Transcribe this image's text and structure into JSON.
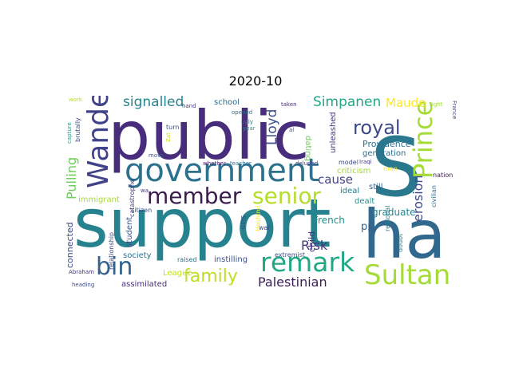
{
  "title": "2020-10",
  "words": [
    {
      "text": "public",
      "color": "#472d7b"
    },
    {
      "text": "support",
      "color": "#26828e"
    },
    {
      "text": "S",
      "color": "#2a788e"
    },
    {
      "text": "ha",
      "color": "#31688e"
    },
    {
      "text": "government",
      "color": "#2c728e"
    },
    {
      "text": "Prince",
      "color": "#a5db36"
    },
    {
      "text": "Wander",
      "color": "#404387"
    },
    {
      "text": "member",
      "color": "#3b1c4e"
    },
    {
      "text": "senior",
      "color": "#b5de2b"
    },
    {
      "text": "remark",
      "color": "#22a884"
    },
    {
      "text": "Sultan",
      "color": "#a5db36"
    },
    {
      "text": "bin",
      "color": "#33638d"
    },
    {
      "text": "royal",
      "color": "#3e4989"
    },
    {
      "text": "family",
      "color": "#bddf26"
    },
    {
      "text": "Palestinian",
      "color": "#3e1c5a"
    },
    {
      "text": "signalled",
      "color": "#25848e"
    },
    {
      "text": "Simpanen",
      "color": "#22a884"
    },
    {
      "text": "Lloyd",
      "color": "#3b528b"
    },
    {
      "text": "Maude",
      "color": "#fde725"
    },
    {
      "text": "erosion",
      "color": "#3e4989"
    },
    {
      "text": "Pulling",
      "color": "#6ece58"
    },
    {
      "text": "cause",
      "color": "#404387"
    },
    {
      "text": "Risk",
      "color": "#46337e"
    },
    {
      "text": "Providence",
      "color": "#2c728e"
    },
    {
      "text": "graduate",
      "color": "#24868e"
    },
    {
      "text": "pp",
      "color": "#33638d"
    },
    {
      "text": "French",
      "color": "#21918c"
    },
    {
      "text": "child",
      "color": "#46337e"
    },
    {
      "text": "connected",
      "color": "#3e4989"
    },
    {
      "text": "student",
      "color": "#39568c"
    },
    {
      "text": "society",
      "color": "#2c728e"
    },
    {
      "text": "assimilated",
      "color": "#472d7b"
    },
    {
      "text": "League",
      "color": "#c2df23"
    },
    {
      "text": "immigrant",
      "color": "#a5db36"
    },
    {
      "text": "school",
      "color": "#31688e"
    },
    {
      "text": "dating",
      "color": "#6ece58"
    },
    {
      "text": "generation",
      "color": "#2f6c8e"
    },
    {
      "text": "unleashed",
      "color": "#46337e"
    },
    {
      "text": "criticism",
      "color": "#a2da37"
    },
    {
      "text": "ideal",
      "color": "#2a788e"
    },
    {
      "text": "still",
      "color": "#34618d"
    },
    {
      "text": "dealt",
      "color": "#20928c"
    },
    {
      "text": "nation",
      "color": "#3b1c4e"
    },
    {
      "text": "civilian",
      "color": "#2c728e"
    },
    {
      "text": "regional",
      "color": "#287c8e"
    },
    {
      "text": "doubt",
      "color": "#277f8e"
    },
    {
      "text": "model",
      "color": "#3e4989"
    },
    {
      "text": "Iraqi",
      "color": "#453781"
    },
    {
      "text": "man",
      "color": "#fbe723"
    },
    {
      "text": "extremist",
      "color": "#3b528b"
    },
    {
      "text": "instilling",
      "color": "#3b528b"
    },
    {
      "text": "raised",
      "color": "#2c728e"
    },
    {
      "text": "war",
      "color": "#3e4989"
    },
    {
      "text": "Slim",
      "color": "#3e4989"
    },
    {
      "text": "Hashimi",
      "color": "#fde725"
    },
    {
      "text": "citizen",
      "color": "#3e4989"
    },
    {
      "text": "catastrophe",
      "color": "#453781"
    },
    {
      "text": "relationship",
      "color": "#3e4989"
    },
    {
      "text": "brutally",
      "color": "#3e4989"
    },
    {
      "text": "capture",
      "color": "#1fa187"
    },
    {
      "text": "work",
      "color": "#b5de2b"
    },
    {
      "text": "hand",
      "color": "#433e85"
    },
    {
      "text": "turn",
      "color": "#3b528b"
    },
    {
      "text": "move",
      "color": "#3b528b"
    },
    {
      "text": "whether",
      "color": "#481a6c"
    },
    {
      "text": "teacher",
      "color": "#2c728e"
    },
    {
      "text": "deluded",
      "color": "#3e4989"
    },
    {
      "text": "opened",
      "color": "#2c728e"
    },
    {
      "text": "ugly",
      "color": "#2a788e"
    },
    {
      "text": "year",
      "color": "#21918c"
    },
    {
      "text": "al",
      "color": "#3b528b"
    },
    {
      "text": "taken",
      "color": "#472d7b"
    },
    {
      "text": "right",
      "color": "#a2da37"
    },
    {
      "text": "France",
      "color": "#3e4989"
    },
    {
      "text": "Zat",
      "color": "#cde11d"
    },
    {
      "text": "wa",
      "color": "#46337e"
    },
    {
      "text": "Abraham",
      "color": "#46337e"
    },
    {
      "text": "heading",
      "color": "#3e4989"
    }
  ]
}
